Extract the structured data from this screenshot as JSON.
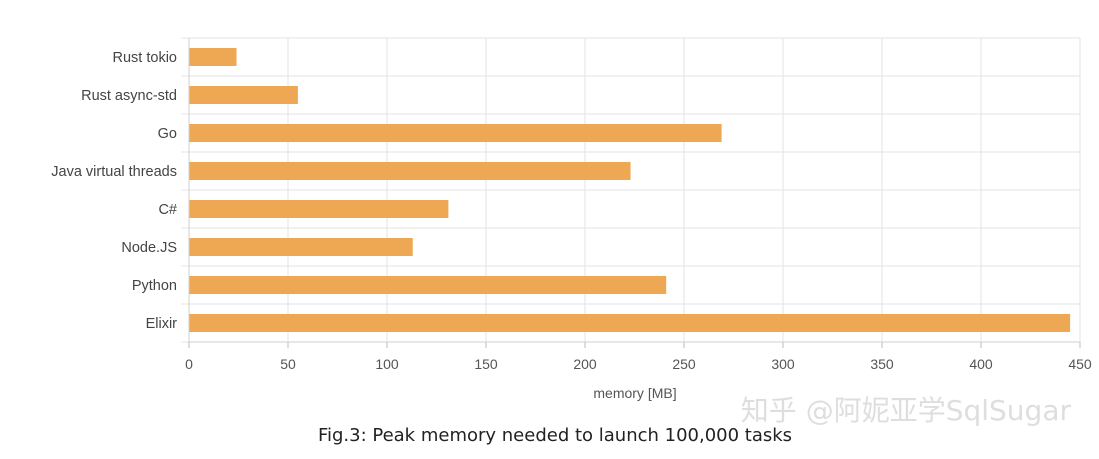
{
  "chart_data": {
    "type": "bar",
    "orientation": "horizontal",
    "categories": [
      "Rust tokio",
      "Rust async-std",
      "Go",
      "Java virtual threads",
      "C#",
      "Node.JS",
      "Python",
      "Elixir"
    ],
    "values": [
      24,
      55,
      269,
      223,
      131,
      113,
      241,
      445
    ],
    "xlabel": "memory [MB]",
    "ylabel": "",
    "xlim": [
      0,
      450
    ],
    "xticks": [
      0,
      50,
      100,
      150,
      200,
      250,
      300,
      350,
      400,
      450
    ],
    "grid": true,
    "bar_color": "#eea753",
    "grid_color": "#e3e3e3"
  },
  "caption": "Fig.3: Peak memory needed to launch 100,000 tasks",
  "watermark": "知乎 @阿妮亚学SqlSugar"
}
